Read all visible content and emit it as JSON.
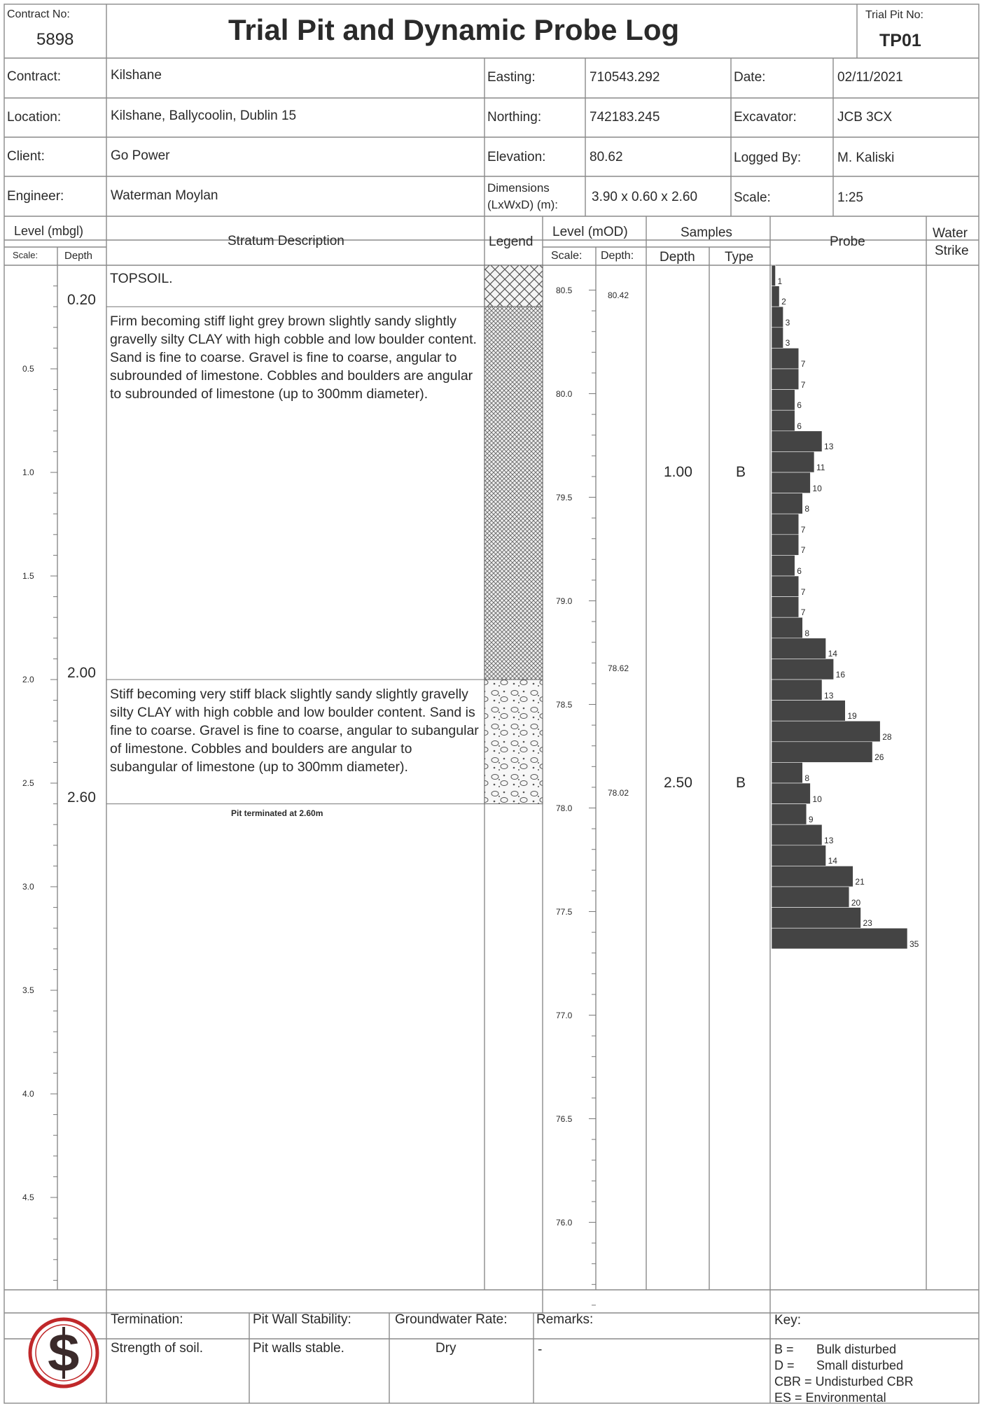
{
  "header": {
    "contract_no_label": "Contract No:",
    "contract_no": "5898",
    "title": "Trial Pit and Dynamic Probe Log",
    "trial_pit_no_label": "Trial Pit No:",
    "trial_pit_no": "TP01"
  },
  "info": {
    "contract_label": "Contract:",
    "contract": "Kilshane",
    "location_label": "Location:",
    "location": "Kilshane, Ballycoolin, Dublin 15",
    "client_label": "Client:",
    "client": "Go Power",
    "engineer_label": "Engineer:",
    "engineer": "Waterman Moylan",
    "easting_label": "Easting:",
    "easting": "710543.292",
    "northing_label": "Northing:",
    "northing": "742183.245",
    "elevation_label": "Elevation:",
    "elevation": "80.62",
    "dimensions_label_1": "Dimensions",
    "dimensions_label_2": "(LxWxD) (m):",
    "dimensions": "3.90 x 0.60 x 2.60",
    "date_label": "Date:",
    "date": "02/11/2021",
    "excavator_label": "Excavator:",
    "excavator": "JCB 3CX",
    "logged_by_label": "Logged By:",
    "logged_by": "M. Kaliski",
    "scale_label": "Scale:",
    "scale": "1:25"
  },
  "columns": {
    "level_mbgl": "Level (mbgl)",
    "scale": "Scale:",
    "depth": "Depth",
    "stratum": "Stratum Description",
    "legend": "Legend",
    "level_mod": "Level (mOD)",
    "scale2": "Scale:",
    "depth2": "Depth:",
    "samples": "Samples",
    "samples_depth": "Depth",
    "samples_type": "Type",
    "probe": "Probe",
    "water_1": "Water",
    "water_2": "Strike"
  },
  "depth_ticks": [
    "0.5",
    "1.0",
    "1.5",
    "2.0",
    "2.5",
    "3.0",
    "3.5",
    "4.0",
    "4.5"
  ],
  "level_ticks": [
    "80.5",
    "80.0",
    "79.5",
    "79.0",
    "78.5",
    "78.0",
    "77.5",
    "77.0",
    "76.5",
    "76.0"
  ],
  "strata": [
    {
      "depth_top": 0.0,
      "depth_base": 0.2,
      "base_depth_label": "0.20",
      "base_level_label": "80.42",
      "description": "TOPSOIL.",
      "legend": "topsoil"
    },
    {
      "depth_top": 0.2,
      "depth_base": 2.0,
      "base_depth_label": "2.00",
      "base_level_label": "78.62",
      "description": "Firm becoming stiff light grey brown slightly sandy slightly gravelly silty CLAY with high cobble and low boulder content. Sand is fine to coarse. Gravel is fine to coarse, angular to subrounded of limestone. Cobbles and boulders are angular to subrounded of limestone (up to 300mm diameter).",
      "legend": "clay-crosshatch"
    },
    {
      "depth_top": 2.0,
      "depth_base": 2.6,
      "base_depth_label": "2.60",
      "base_level_label": "78.02",
      "description": "Stiff becoming very stiff black slightly sandy slightly gravelly silty CLAY with high cobble and low boulder content. Sand is fine to coarse. Gravel is fine to coarse, angular to subangular of limestone. Cobbles and boulders are angular to subangular of limestone (up to 300mm diameter).",
      "legend": "cobbles-boulders"
    }
  ],
  "termination_text": "Pit terminated at 2.60m",
  "samples": [
    {
      "depth": 1.0,
      "depth_label": "1.00",
      "type": "B"
    },
    {
      "depth": 2.5,
      "depth_label": "2.50",
      "type": "B"
    }
  ],
  "probe": {
    "blow_counts": [
      1,
      2,
      3,
      3,
      7,
      7,
      6,
      6,
      13,
      11,
      10,
      8,
      7,
      7,
      6,
      7,
      7,
      8,
      14,
      16,
      13,
      19,
      28,
      26,
      8,
      10,
      9,
      13,
      14,
      21,
      20,
      23,
      35
    ],
    "interval_m": 0.1,
    "max_blows": 35,
    "bar_color": "#444444"
  },
  "footer": {
    "termination_label": "Termination:",
    "termination": "Strength of soil.",
    "pit_wall_label": "Pit Wall Stability:",
    "pit_wall": "Pit walls stable.",
    "groundwater_label": "Groundwater Rate:",
    "groundwater": "Dry",
    "remarks_label": "Remarks:",
    "remarks": "-",
    "key_label": "Key:",
    "key": [
      {
        "code": "B =",
        "meaning": "Bulk disturbed"
      },
      {
        "code": "D =",
        "meaning": "Small disturbed"
      },
      {
        "code": "CBR = Undisturbed CBR",
        "meaning": ""
      },
      {
        "code": "ES = Environmental",
        "meaning": ""
      }
    ]
  },
  "logo": {
    "text": "S",
    "ring_color": "#c0282a"
  }
}
